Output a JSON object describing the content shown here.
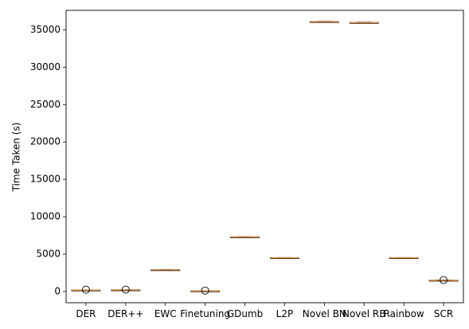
{
  "chart_data": {
    "type": "box",
    "title": "",
    "xlabel": "",
    "ylabel": "Time Taken (s)",
    "ylim": [
      -1500,
      37600
    ],
    "yticks": [
      0,
      5000,
      10000,
      15000,
      20000,
      25000,
      30000,
      35000
    ],
    "yticks_labels": [
      "0",
      "5000",
      "10000",
      "15000",
      "20000",
      "25000",
      "30000",
      "35000"
    ],
    "categories": [
      "DER",
      "DER++",
      "EWC",
      "Finetuning",
      "GDumb",
      "L2P",
      "Novel BN",
      "Novel RB",
      "Rainbow",
      "SCR"
    ],
    "boxes": [
      {
        "category": "DER",
        "q1": 190,
        "median": 200,
        "q3": 210,
        "whisker_low": 180,
        "whisker_high": 220,
        "outliers": [
          250
        ]
      },
      {
        "category": "DER++",
        "q1": 205,
        "median": 215,
        "q3": 225,
        "whisker_low": 195,
        "whisker_high": 235,
        "outliers": [
          255
        ]
      },
      {
        "category": "EWC",
        "q1": 2850,
        "median": 2880,
        "q3": 2910,
        "whisker_low": 2830,
        "whisker_high": 2930,
        "outliers": []
      },
      {
        "category": "Finetuning",
        "q1": 80,
        "median": 90,
        "q3": 100,
        "whisker_low": 70,
        "whisker_high": 110,
        "outliers": [
          120
        ]
      },
      {
        "category": "GDumb",
        "q1": 7250,
        "median": 7280,
        "q3": 7310,
        "whisker_low": 7230,
        "whisker_high": 7330,
        "outliers": []
      },
      {
        "category": "L2P",
        "q1": 4470,
        "median": 4500,
        "q3": 4530,
        "whisker_low": 4450,
        "whisker_high": 4550,
        "outliers": []
      },
      {
        "category": "Novel BN",
        "q1": 36020,
        "median": 36060,
        "q3": 36100,
        "whisker_low": 35990,
        "whisker_high": 36130,
        "outliers": []
      },
      {
        "category": "Novel RB",
        "q1": 35900,
        "median": 35940,
        "q3": 35980,
        "whisker_low": 35870,
        "whisker_high": 36010,
        "outliers": []
      },
      {
        "category": "Rainbow",
        "q1": 4470,
        "median": 4500,
        "q3": 4530,
        "whisker_low": 4450,
        "whisker_high": 4550,
        "outliers": []
      },
      {
        "category": "SCR",
        "q1": 1450,
        "median": 1480,
        "q3": 1510,
        "whisker_low": 1430,
        "whisker_high": 1530,
        "outliers": [
          1520
        ]
      }
    ],
    "colors": {
      "box": "#000000",
      "median": "#e08a3c",
      "outlier": "#000000"
    },
    "grid": false,
    "legend": "none"
  }
}
